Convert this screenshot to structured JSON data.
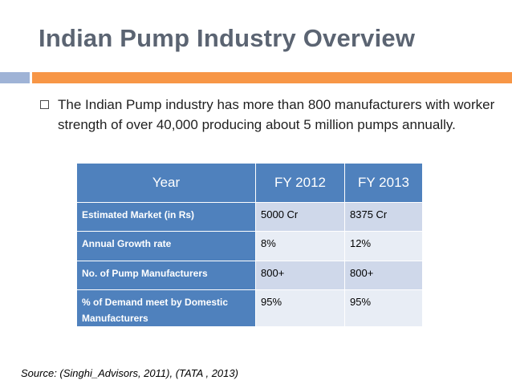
{
  "title": "Indian Pump Industry Overview",
  "bullet": "The Indian Pump industry has more than 800 manufacturers with worker strength of over 40,000 producing about 5 million pumps annually.",
  "table": {
    "headers": [
      "Year",
      "FY 2012",
      "FY 2013"
    ],
    "rows": [
      [
        "Estimated Market (in Rs)",
        "5000 Cr",
        "8375 Cr"
      ],
      [
        "Annual Growth rate",
        "8%",
        "12%"
      ],
      [
        "No. of Pump Manufacturers",
        "800+",
        "800+"
      ],
      [
        "% of Demand meet by Domestic Manufacturers",
        "95%",
        "95%"
      ]
    ]
  },
  "source": "Source: (Singhi_Advisors, 2011), (TATA , 2013)",
  "colors": {
    "title": "#5b6472",
    "accent_orange": "#f79646",
    "accent_blue": "#9fb3d6",
    "table_header": "#4f81bd",
    "row_dark": "#cfd8ea",
    "row_light": "#e8edf5"
  }
}
